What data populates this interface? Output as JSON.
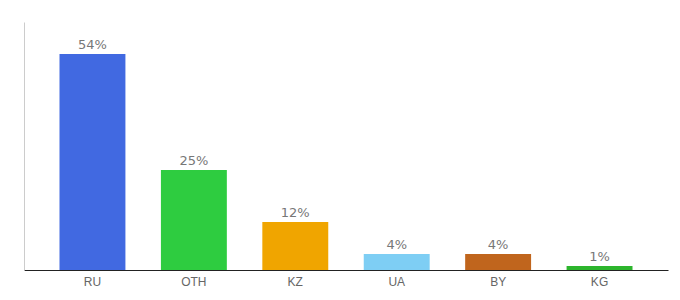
{
  "chart_data": {
    "type": "bar",
    "categories": [
      "RU",
      "OTH",
      "KZ",
      "UA",
      "BY",
      "KG"
    ],
    "values": [
      54,
      25,
      12,
      4,
      4,
      1
    ],
    "value_labels": [
      "54%",
      "25%",
      "12%",
      "4%",
      "4%",
      "1%"
    ],
    "colors": [
      "#4169e1",
      "#2ecc40",
      "#f0a500",
      "#7ecef4",
      "#c0651d",
      "#2db52d"
    ],
    "ylim": [
      0,
      62
    ],
    "yticks": [],
    "grid": false,
    "data_labels": true,
    "tick_labels": "x"
  }
}
